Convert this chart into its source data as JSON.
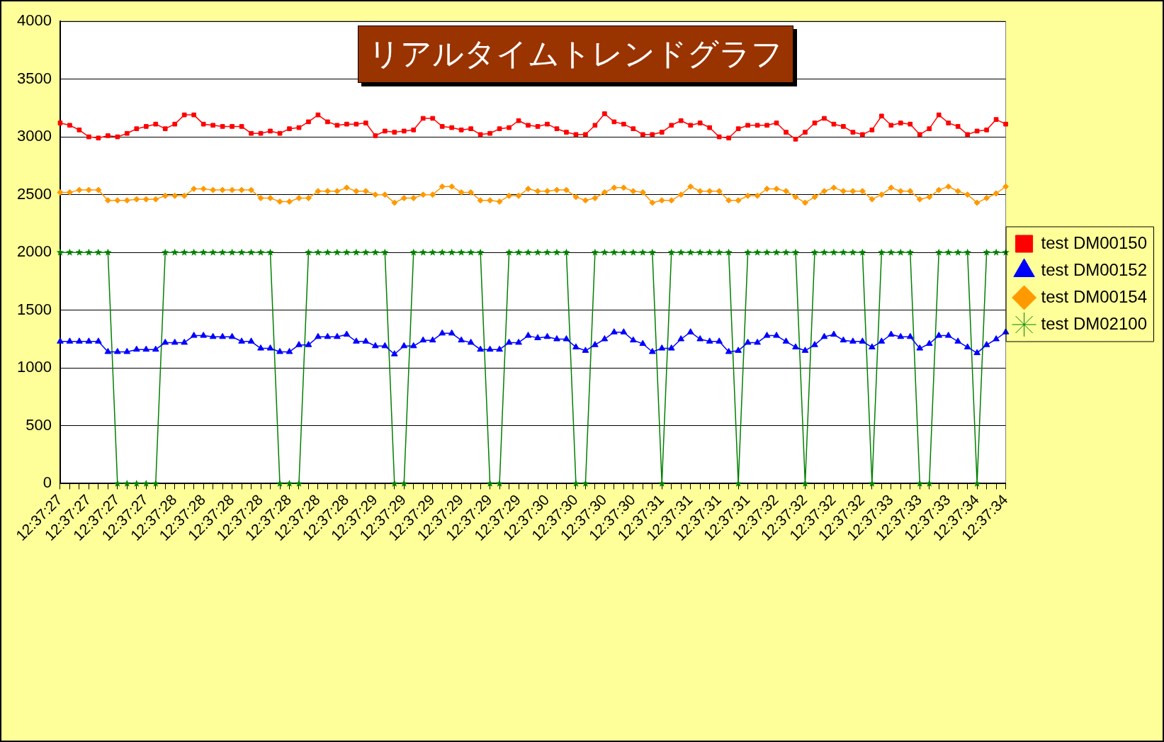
{
  "chart_data": {
    "type": "line",
    "title": "リアルタイムトレンドグラフ",
    "categories": [
      "12:37:27",
      null,
      null,
      "12:37:27",
      null,
      null,
      "12:37:27",
      null,
      null,
      "12:37:27",
      null,
      null,
      "12:37:28",
      null,
      null,
      "12:37:28",
      null,
      null,
      "12:37:28",
      null,
      null,
      "12:37:28",
      null,
      null,
      "12:37:28",
      null,
      null,
      "12:37:28",
      null,
      null,
      "12:37:28",
      null,
      null,
      "12:37:29",
      null,
      null,
      "12:37:29",
      null,
      null,
      "12:37:29",
      null,
      null,
      "12:37:29",
      null,
      null,
      "12:37:29",
      null,
      null,
      "12:37:29",
      null,
      null,
      "12:37:30",
      null,
      null,
      "12:37:30",
      null,
      null,
      "12:37:30",
      null,
      null,
      "12:37:30",
      null,
      null,
      "12:37:31",
      null,
      null,
      "12:37:31",
      null,
      null,
      "12:37:31",
      null,
      null,
      "12:37:31",
      null,
      null,
      "12:37:32",
      null,
      null,
      "12:37:32",
      null,
      null,
      "12:37:32",
      null,
      null,
      "12:37:32",
      null,
      null,
      "12:37:33",
      null,
      null,
      "12:37:33",
      null,
      null,
      "12:37:33",
      null,
      null,
      "12:37:34",
      null,
      null,
      "12:37:34"
    ],
    "series": [
      {
        "name": "test DM00150",
        "color": "#ff0000",
        "marker": "square",
        "values": [
          3120,
          3100,
          3060,
          3000,
          2990,
          3010,
          3000,
          3030,
          3070,
          3090,
          3110,
          3070,
          3110,
          3190,
          3190,
          3110,
          3100,
          3090,
          3090,
          3090,
          3030,
          3030,
          3050,
          3030,
          3070,
          3080,
          3130,
          3190,
          3130,
          3100,
          3110,
          3110,
          3120,
          3010,
          3050,
          3040,
          3050,
          3060,
          3160,
          3160,
          3090,
          3080,
          3060,
          3070,
          3020,
          3030,
          3070,
          3080,
          3140,
          3100,
          3090,
          3110,
          3070,
          3040,
          3020,
          3020,
          3100,
          3200,
          3130,
          3110,
          3070,
          3020,
          3020,
          3040,
          3100,
          3140,
          3100,
          3120,
          3080,
          3000,
          2990,
          3070,
          3100,
          3100,
          3100,
          3120,
          3040,
          2980,
          3040,
          3120,
          3160,
          3110,
          3090,
          3040,
          3020,
          3060,
          3180,
          3100,
          3120,
          3110,
          3020,
          3070,
          3190,
          3120,
          3090,
          3020,
          3050,
          3060,
          3150,
          3110
        ]
      },
      {
        "name": "test DM00152",
        "color": "#0000ff",
        "marker": "triangle",
        "values": [
          1230,
          1230,
          1230,
          1230,
          1230,
          1140,
          1140,
          1140,
          1160,
          1160,
          1160,
          1220,
          1220,
          1220,
          1280,
          1280,
          1270,
          1270,
          1270,
          1230,
          1230,
          1170,
          1170,
          1140,
          1140,
          1200,
          1200,
          1270,
          1270,
          1270,
          1290,
          1230,
          1230,
          1190,
          1190,
          1120,
          1190,
          1190,
          1240,
          1240,
          1300,
          1300,
          1240,
          1220,
          1160,
          1160,
          1160,
          1220,
          1220,
          1280,
          1260,
          1270,
          1250,
          1250,
          1180,
          1150,
          1200,
          1250,
          1310,
          1310,
          1240,
          1210,
          1140,
          1170,
          1170,
          1250,
          1310,
          1250,
          1230,
          1230,
          1140,
          1150,
          1220,
          1220,
          1280,
          1280,
          1230,
          1180,
          1150,
          1200,
          1270,
          1290,
          1240,
          1230,
          1230,
          1180,
          1230,
          1290,
          1270,
          1270,
          1170,
          1210,
          1280,
          1280,
          1230,
          1180,
          1130,
          1200,
          1250,
          1310
        ]
      },
      {
        "name": "test DM00154",
        "color": "#ff9900",
        "marker": "diamond",
        "values": [
          2520,
          2520,
          2540,
          2540,
          2540,
          2450,
          2450,
          2450,
          2460,
          2460,
          2460,
          2490,
          2490,
          2490,
          2550,
          2550,
          2540,
          2540,
          2540,
          2540,
          2540,
          2470,
          2470,
          2440,
          2440,
          2470,
          2470,
          2530,
          2530,
          2530,
          2560,
          2530,
          2530,
          2500,
          2500,
          2430,
          2470,
          2470,
          2500,
          2500,
          2570,
          2570,
          2520,
          2520,
          2450,
          2450,
          2440,
          2490,
          2490,
          2550,
          2530,
          2530,
          2540,
          2540,
          2480,
          2450,
          2470,
          2520,
          2560,
          2560,
          2530,
          2520,
          2430,
          2450,
          2450,
          2500,
          2570,
          2530,
          2530,
          2530,
          2450,
          2450,
          2490,
          2490,
          2550,
          2550,
          2530,
          2480,
          2430,
          2480,
          2530,
          2560,
          2530,
          2530,
          2530,
          2460,
          2500,
          2560,
          2530,
          2530,
          2460,
          2480,
          2540,
          2570,
          2530,
          2500,
          2430,
          2470,
          2510,
          2570
        ]
      },
      {
        "name": "test DM02100",
        "color": "#008000",
        "marker": "star",
        "values": [
          2000,
          2000,
          2000,
          2000,
          2000,
          2000,
          0,
          0,
          0,
          0,
          0,
          2000,
          2000,
          2000,
          2000,
          2000,
          2000,
          2000,
          2000,
          2000,
          2000,
          2000,
          2000,
          0,
          0,
          0,
          2000,
          2000,
          2000,
          2000,
          2000,
          2000,
          2000,
          2000,
          2000,
          0,
          0,
          2000,
          2000,
          2000,
          2000,
          2000,
          2000,
          2000,
          2000,
          0,
          0,
          2000,
          2000,
          2000,
          2000,
          2000,
          2000,
          2000,
          0,
          0,
          2000,
          2000,
          2000,
          2000,
          2000,
          2000,
          2000,
          0,
          2000,
          2000,
          2000,
          2000,
          2000,
          2000,
          2000,
          0,
          2000,
          2000,
          2000,
          2000,
          2000,
          2000,
          0,
          2000,
          2000,
          2000,
          2000,
          2000,
          2000,
          0,
          2000,
          2000,
          2000,
          2000,
          0,
          0,
          2000,
          2000,
          2000,
          2000,
          0,
          2000,
          2000,
          2000
        ]
      }
    ],
    "ylim": [
      0,
      4000
    ],
    "yticks": [
      0,
      500,
      1000,
      1500,
      2000,
      2500,
      3000,
      3500,
      4000
    ],
    "grid": "y",
    "legend": "right",
    "line_style": "solid"
  }
}
